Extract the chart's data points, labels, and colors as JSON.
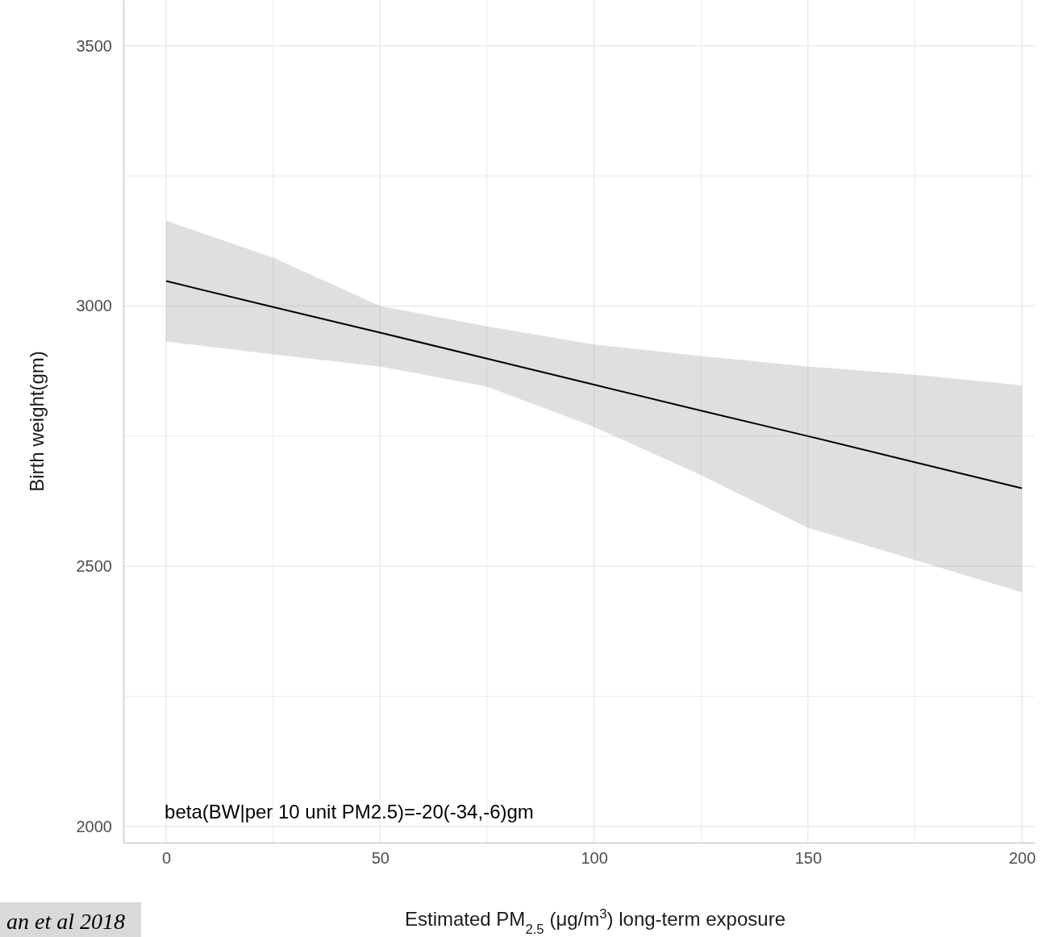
{
  "chart_data": {
    "type": "line",
    "xlabel": "Estimated PM$_{2.5}$ (μg/m$^{3}$) long-term exposure",
    "ylabel": "Birth weight(gm)",
    "x": [
      0,
      25,
      50,
      75,
      100,
      125,
      150,
      175,
      200
    ],
    "series": [
      {
        "color": "#000000",
        "values": [
          3048,
          2998,
          2949,
          2899,
          2849,
          2799,
          2750,
          2700,
          2650
        ],
        "lower": [
          2932,
          2907,
          2884,
          2845,
          2768,
          2675,
          2574,
          2512,
          2450
        ],
        "upper": [
          3164,
          3093,
          3000,
          2961,
          2926,
          2904,
          2884,
          2868,
          2848
        ]
      }
    ],
    "xlim": [
      -10,
      203
    ],
    "xticks": [
      0,
      {
        "value": 25,
        "label": null
      },
      50,
      {
        "value": 75,
        "label": null
      },
      100,
      {
        "value": 125,
        "label": null
      },
      150,
      {
        "value": 175,
        "label": null
      },
      200
    ],
    "ylim": [
      1969,
      3588
    ],
    "yticks": [
      2000,
      {
        "value": 2250,
        "label": null
      },
      2500,
      {
        "value": 2750,
        "label": null
      },
      3000,
      {
        "value": 3250,
        "label": null
      },
      3500
    ],
    "grid": true,
    "marker": "none",
    "line_style": "solid",
    "annotations": [
      "beta(BW|per 10 unit PM2.5)=-20(-34,-6)gm",
      "an et al 2018"
    ]
  }
}
